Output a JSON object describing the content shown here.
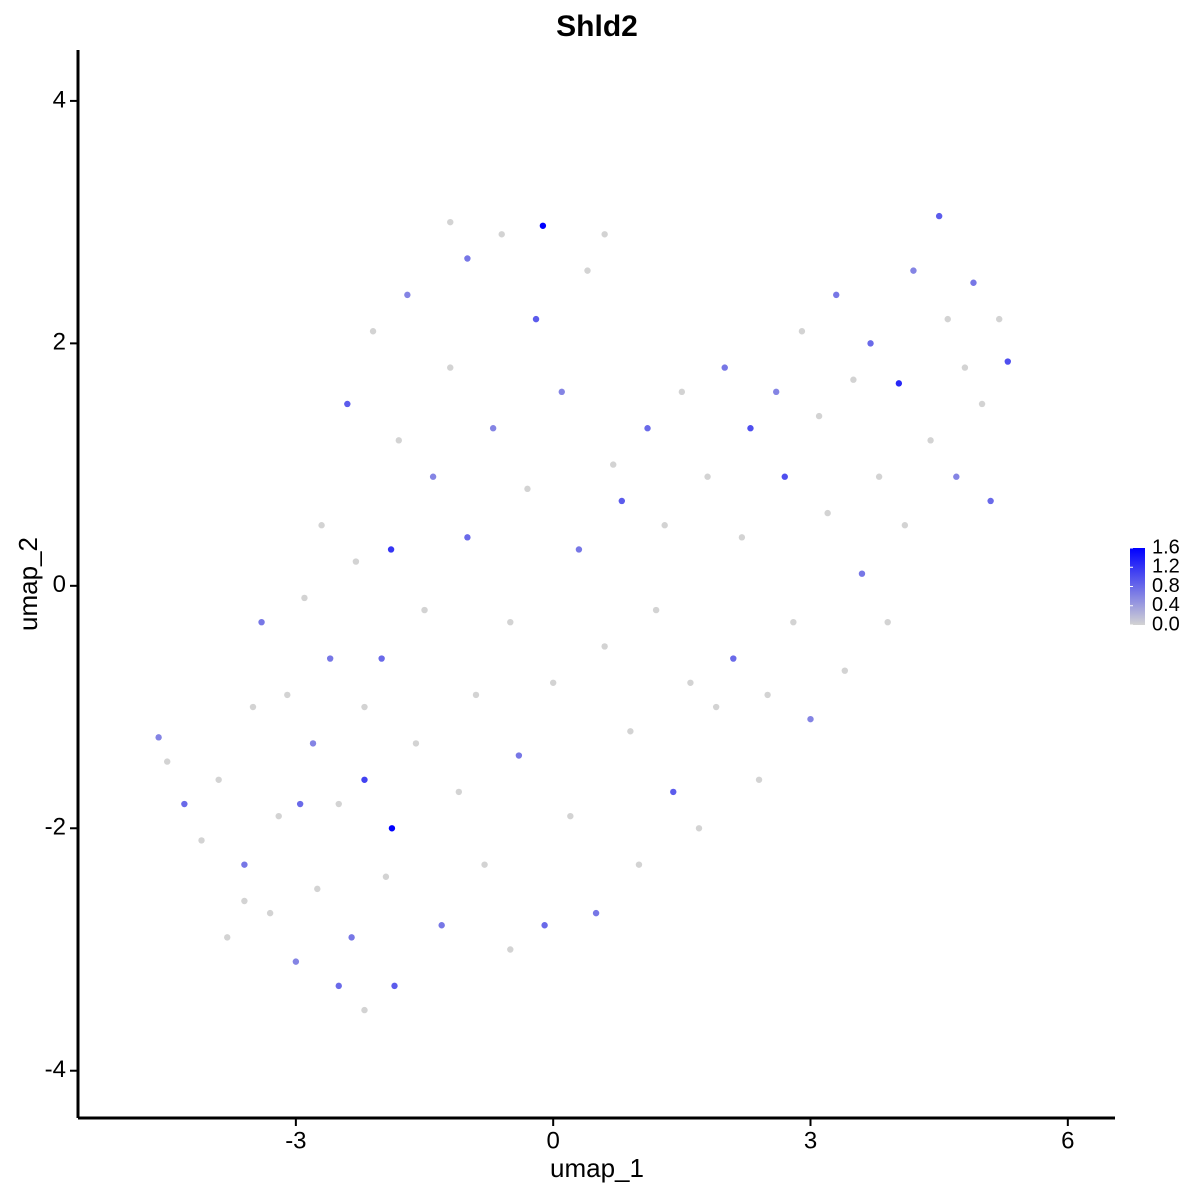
{
  "chart_data": {
    "type": "scatter",
    "title": "Shld2",
    "x_label": "umap_1",
    "y_label": "umap_2",
    "xlim": [
      -5.54,
      6.55
    ],
    "ylim": [
      -4.39,
      4.42
    ],
    "xticks": [
      -3,
      0,
      3,
      6
    ],
    "yticks": [
      -4,
      -2,
      0,
      2,
      4
    ],
    "color_low": "#d3d3d3",
    "color_high": "#0000ff",
    "colorbar_lim": [
      0,
      1.6
    ],
    "colorbar_ticks": [
      {
        "value": 0,
        "label": "0.0"
      },
      0.4,
      0.8,
      1.2,
      1.6
    ],
    "x": [
      -4.6,
      -4.5,
      -4.3,
      -4.1,
      -3.9,
      -3.8,
      -3.6,
      -3.5,
      -3.4,
      -3.3,
      -3.2,
      -3.1,
      -3.0,
      -2.95,
      -2.9,
      -2.8,
      -2.75,
      -2.7,
      -2.6,
      -2.5,
      -2.5,
      -2.4,
      -2.35,
      -2.3,
      -2.2,
      -2.2,
      -2.1,
      -2.0,
      -1.95,
      -1.88,
      -1.89,
      -1.85,
      -1.8,
      -1.7,
      -1.6,
      -1.5,
      -1.4,
      -1.3,
      -1.2,
      -1.1,
      -1.0,
      -1.0,
      -0.9,
      -0.8,
      -0.7,
      -0.6,
      -0.5,
      -0.4,
      -0.3,
      -0.2,
      -0.12,
      -0.1,
      0.0,
      0.1,
      0.2,
      0.3,
      0.4,
      0.5,
      0.6,
      0.7,
      0.8,
      0.9,
      1.0,
      1.1,
      1.2,
      1.3,
      1.4,
      1.5,
      1.6,
      1.7,
      1.8,
      1.9,
      2.0,
      2.1,
      2.2,
      2.3,
      2.4,
      2.5,
      2.6,
      2.7,
      2.8,
      2.9,
      3.0,
      3.1,
      3.2,
      3.3,
      3.4,
      3.5,
      3.6,
      3.7,
      3.8,
      3.9,
      4.03,
      4.1,
      4.2,
      4.4,
      4.5,
      4.6,
      4.7,
      4.8,
      4.9,
      5.0,
      5.1,
      5.2,
      5.3,
      -0.5,
      -3.6,
      -2.2,
      0.6,
      -1.2
    ],
    "y": [
      -1.25,
      -1.45,
      -1.8,
      -2.1,
      -1.6,
      -2.9,
      -2.3,
      -1.0,
      -0.3,
      -2.7,
      -1.9,
      -0.9,
      -3.1,
      -1.8,
      -0.1,
      -1.3,
      -2.5,
      0.5,
      -0.6,
      -3.3,
      -1.8,
      1.5,
      -2.9,
      0.2,
      -1.0,
      -1.6,
      2.1,
      -0.6,
      -2.4,
      -2.0,
      0.3,
      -3.3,
      1.2,
      2.4,
      -1.3,
      -0.2,
      0.9,
      -2.8,
      1.8,
      -1.7,
      0.4,
      2.7,
      -0.9,
      -2.3,
      1.3,
      2.9,
      -0.3,
      -1.4,
      0.8,
      2.2,
      2.97,
      -2.8,
      -0.8,
      1.6,
      -1.9,
      0.3,
      2.6,
      -2.7,
      -0.5,
      1.0,
      0.7,
      -1.2,
      -2.3,
      1.3,
      -0.2,
      0.5,
      -1.7,
      1.6,
      -0.8,
      -2.0,
      0.9,
      -1.0,
      1.8,
      -0.6,
      0.4,
      1.3,
      -1.6,
      -0.9,
      1.6,
      0.9,
      -0.3,
      2.1,
      -1.1,
      1.4,
      0.6,
      2.4,
      -0.7,
      1.7,
      0.1,
      2.0,
      0.9,
      -0.3,
      1.67,
      0.5,
      2.6,
      1.2,
      3.05,
      2.2,
      0.9,
      1.8,
      2.5,
      1.5,
      0.7,
      2.2,
      1.85,
      -3.0,
      -2.6,
      -3.5,
      2.9,
      3.0
    ],
    "values": [
      0.6,
      0,
      0.8,
      0,
      0,
      0,
      0.7,
      0,
      0.7,
      0,
      0,
      0,
      0.6,
      0.8,
      0,
      0.6,
      0,
      0,
      0.7,
      0.8,
      0,
      0.9,
      0.7,
      0,
      0,
      1.1,
      0,
      0.8,
      0,
      1.6,
      1.2,
      0.9,
      0,
      0.6,
      0,
      0,
      0.6,
      0.7,
      0,
      0,
      0.8,
      0.7,
      0,
      0,
      0.6,
      0,
      0,
      0.7,
      0,
      0.9,
      1.6,
      0.8,
      0,
      0.6,
      0,
      0.7,
      0,
      0.7,
      0,
      0,
      0.9,
      0,
      0,
      0.8,
      0,
      0,
      0.9,
      0,
      0,
      0,
      0,
      0,
      0.7,
      0.8,
      0,
      1.0,
      0,
      0,
      0.6,
      1.0,
      0,
      0,
      0.6,
      0,
      0,
      0.7,
      0,
      0,
      0.7,
      0.8,
      0,
      0,
      1.3,
      0,
      0.6,
      0,
      0.9,
      0,
      0.6,
      0,
      0.7,
      0,
      0.8,
      0,
      1.0,
      0,
      0,
      0,
      0,
      0
    ]
  }
}
